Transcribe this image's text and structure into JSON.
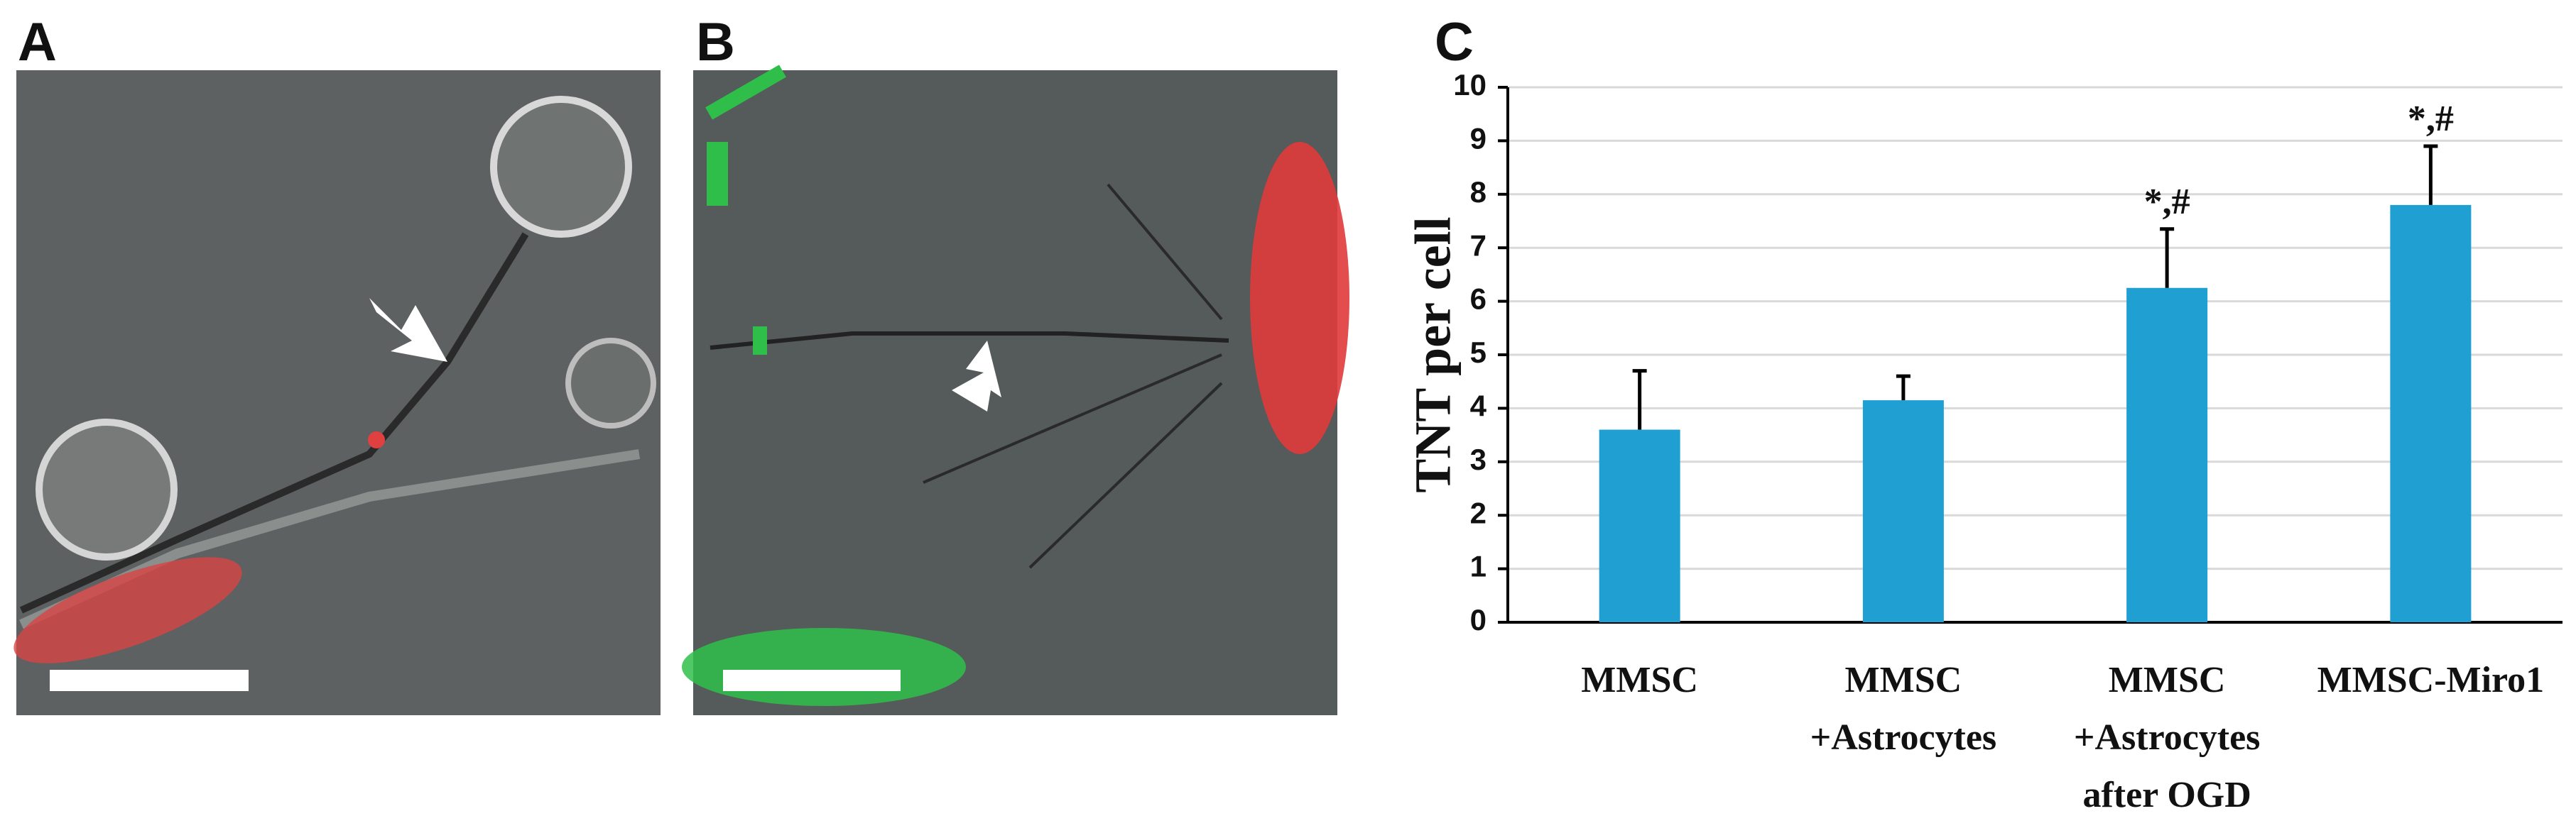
{
  "panels": [
    "A",
    "B",
    "C"
  ],
  "chart_data": {
    "type": "bar",
    "y_label": "TNT per cell",
    "categories": [
      [
        "MMSC"
      ],
      [
        "MMSC",
        "+Astrocytes"
      ],
      [
        "MMSC",
        "+Astrocytes",
        "after OGD"
      ],
      [
        "MMSC-Miro1"
      ]
    ],
    "values": [
      3.6,
      4.15,
      6.25,
      7.8
    ],
    "errors": [
      1.1,
      0.45,
      1.1,
      1.1
    ],
    "annotations": [
      null,
      null,
      "*,#",
      "*,#"
    ],
    "color": "#1f9fd2",
    "ylim": [
      0,
      10
    ],
    "yticks": [
      0,
      1,
      2,
      3,
      4,
      5,
      6,
      7,
      8,
      9,
      10
    ],
    "grid": true
  }
}
